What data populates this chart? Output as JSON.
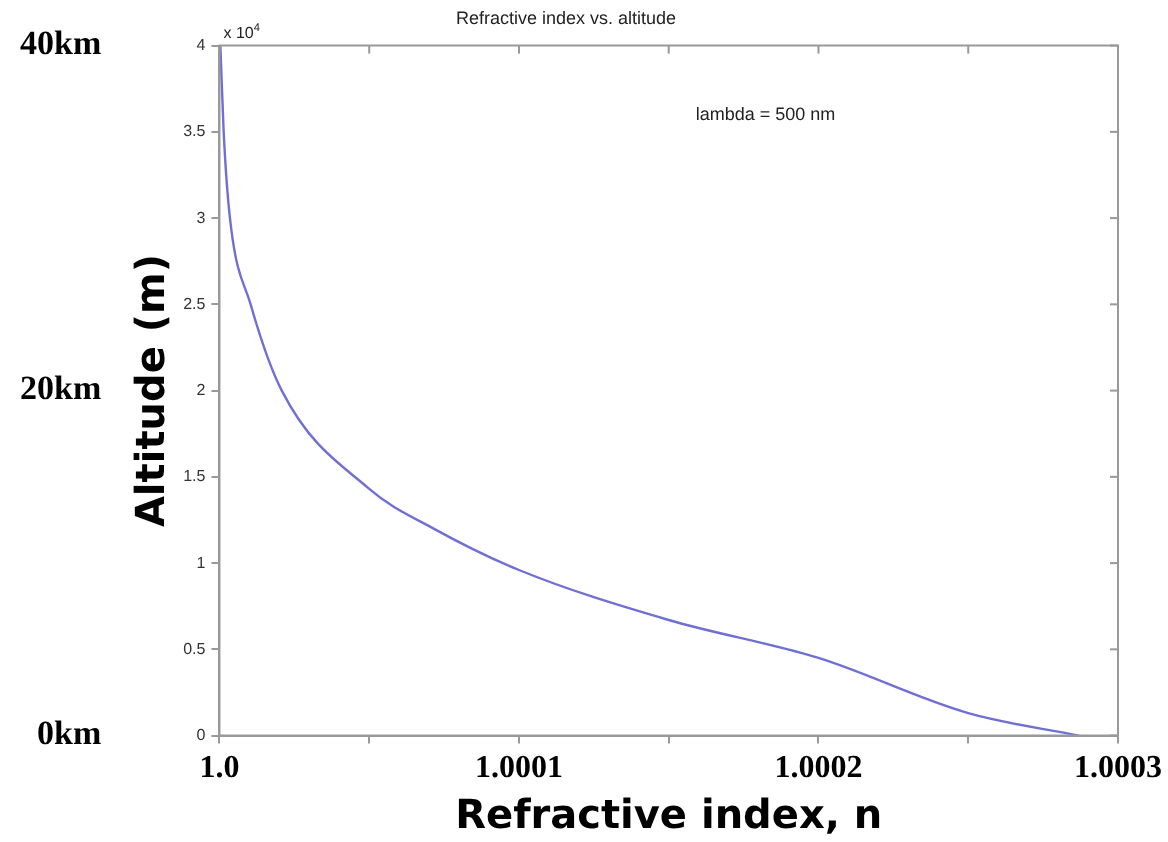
{
  "chart_data": {
    "type": "line",
    "title": "Refractive index vs. altitude",
    "xlabel": "Refractive index, n",
    "ylabel": "Altitude (m)",
    "annotations": [
      "lambda = 500 nm",
      "x 10$^{4}$"
    ],
    "x": [
      1.0000003,
      1.0000014,
      1.0000035,
      1.0000104,
      1.0000208,
      1.00005,
      1.0000715,
      1.0001,
      1.00015,
      1.0002,
      1.00025,
      1.000287
    ],
    "series": [
      {
        "color": "#6f6fd6",
        "values": [
          4.0,
          3.5,
          3.0,
          2.5,
          2.0,
          1.43,
          1.2,
          0.96,
          0.67,
          0.45,
          0.13,
          0
        ]
      }
    ],
    "xlim": [
      1,
      1.0003
    ],
    "xticks": [
      {
        "value": 1,
        "label": "1.0"
      },
      {
        "value": 1.00005,
        "label": null
      },
      {
        "value": 1.0001,
        "label": "1.0001"
      },
      {
        "value": 1.00015,
        "label": null
      },
      {
        "value": 1.0002,
        "label": "1.0002"
      },
      {
        "value": 1.00025,
        "label": null
      },
      {
        "value": 1.0003,
        "label": "1.0003"
      }
    ],
    "ylim": [
      0,
      4
    ],
    "yticks": [
      0,
      0.5,
      1,
      1.5,
      2,
      2.5,
      3,
      3.5,
      4
    ],
    "y2lim": [
      0,
      40
    ],
    "y2ticks": [
      {
        "value": 0,
        "label": "0km"
      },
      {
        "value": 20,
        "label": "20km"
      },
      {
        "value": 40,
        "label": "40km"
      }
    ],
    "legend": false,
    "marker": "none",
    "line_style": "solid"
  }
}
